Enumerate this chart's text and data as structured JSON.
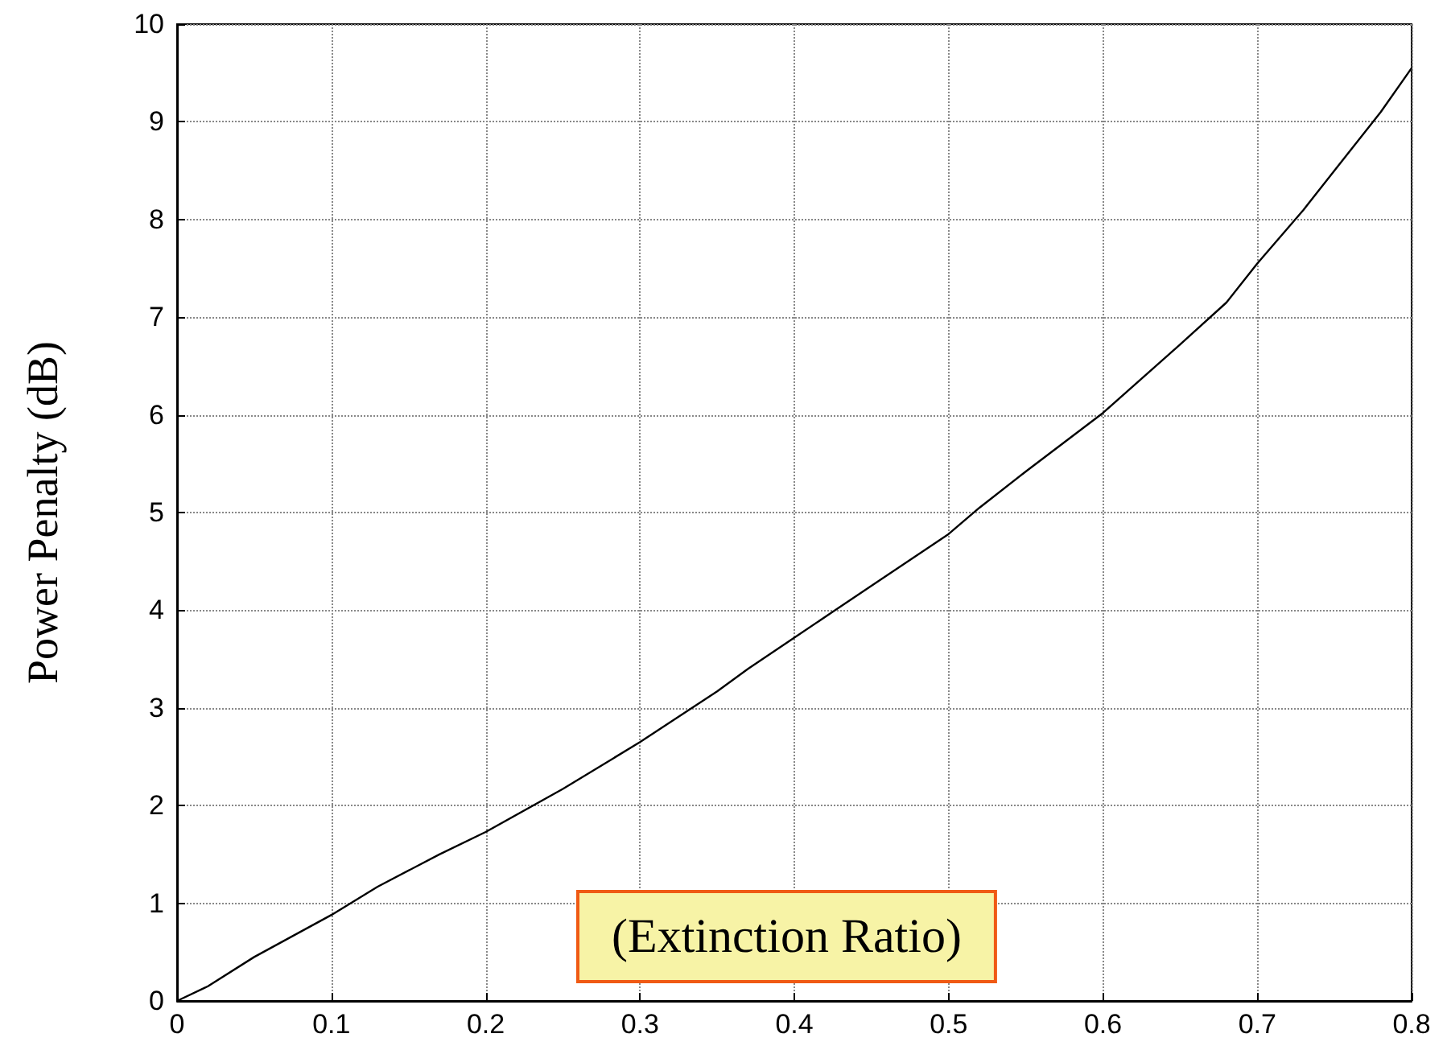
{
  "chart_data": {
    "type": "line",
    "xlabel": "(Extinction Ratio)",
    "ylabel": "Power Penalty (dB)",
    "x": [
      0,
      0.02,
      0.05,
      0.1,
      0.13,
      0.17,
      0.2,
      0.25,
      0.3,
      0.35,
      0.37,
      0.4,
      0.45,
      0.5,
      0.52,
      0.55,
      0.6,
      0.65,
      0.68,
      0.7,
      0.73,
      0.75,
      0.78,
      0.8
    ],
    "series": [
      {
        "color": "#000000",
        "values": [
          0,
          0.15,
          0.45,
          0.88,
          1.17,
          1.5,
          1.73,
          2.17,
          2.65,
          3.17,
          3.4,
          3.72,
          4.25,
          4.78,
          5.05,
          5.42,
          6.02,
          6.72,
          7.15,
          7.55,
          8.1,
          8.5,
          9.1,
          9.55
        ]
      }
    ],
    "xlim": [
      0,
      0.8
    ],
    "xticks": [
      0,
      0.1,
      0.2,
      0.3,
      0.4,
      0.5,
      0.6,
      0.7,
      0.8
    ],
    "ylim": [
      0,
      10
    ],
    "yticks": [
      0,
      1,
      2,
      3,
      4,
      5,
      6,
      7,
      8,
      9,
      10
    ],
    "grid": true,
    "marker": "none",
    "line_style": "solid"
  }
}
